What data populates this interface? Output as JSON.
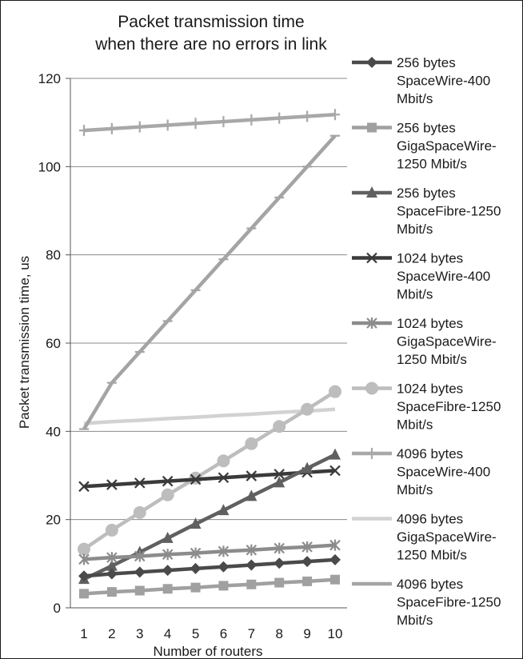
{
  "chart_data": {
    "type": "line",
    "title_lines": [
      "Packet transmission time",
      "when there are no errors in link"
    ],
    "xlabel": "Number of routers",
    "ylabel": "Packet  transmission time, us",
    "x": [
      1,
      2,
      3,
      4,
      5,
      6,
      7,
      8,
      9,
      10
    ],
    "ylim": [
      0,
      120
    ],
    "yticks": [
      0,
      20,
      40,
      60,
      80,
      100,
      120
    ],
    "grid": "horizontal",
    "legend_position": "right",
    "series": [
      {
        "name": "256 bytes SpaceWire-400 Mbit/s",
        "legend_lines": [
          "256 bytes",
          "SpaceWire-400",
          "Mbit/s"
        ],
        "color": "#4a4a4a",
        "marker": "diamond",
        "values": [
          7.2,
          7.7,
          8.1,
          8.5,
          8.9,
          9.3,
          9.7,
          10.1,
          10.5,
          10.9
        ]
      },
      {
        "name": "256 bytes GigaSpaceWire-1250 Mbit/s",
        "legend_lines": [
          "256 bytes",
          "GigaSpaceWire-",
          "1250 Mbit/s"
        ],
        "color": "#a0a0a0",
        "marker": "square",
        "values": [
          3.2,
          3.6,
          3.9,
          4.3,
          4.6,
          5.0,
          5.3,
          5.7,
          6.0,
          6.4
        ]
      },
      {
        "name": "256 bytes SpaceFibre-1250 Mbit/s",
        "legend_lines": [
          "256 bytes",
          "SpaceFibre-1250",
          "Mbit/s"
        ],
        "color": "#606060",
        "marker": "triangle",
        "values": [
          6.5,
          9.5,
          12.6,
          15.8,
          19.0,
          22.1,
          25.3,
          28.4,
          31.6,
          34.7
        ]
      },
      {
        "name": "1024 bytes SpaceWire-400 Mbit/s",
        "legend_lines": [
          "1024 bytes",
          "SpaceWire-400",
          "Mbit/s"
        ],
        "color": "#3a3a3a",
        "marker": "x",
        "values": [
          27.5,
          27.9,
          28.3,
          28.7,
          29.1,
          29.5,
          29.9,
          30.3,
          30.7,
          31.1
        ]
      },
      {
        "name": "1024 bytes GigaSpaceWire-1250 Mbit/s",
        "legend_lines": [
          "1024 bytes",
          "GigaSpaceWire-",
          "1250 Mbit/s"
        ],
        "color": "#8c8c8c",
        "marker": "asterisk",
        "values": [
          11.0,
          11.4,
          11.7,
          12.1,
          12.4,
          12.8,
          13.1,
          13.5,
          13.8,
          14.2
        ]
      },
      {
        "name": "1024 bytes SpaceFibre-1250 Mbit/s",
        "legend_lines": [
          "1024 bytes",
          "SpaceFibre-1250",
          "Mbit/s"
        ],
        "color": "#bdbdbd",
        "marker": "circle",
        "values": [
          13.3,
          17.6,
          21.6,
          25.6,
          29.4,
          33.3,
          37.2,
          41.1,
          45.0,
          49.0
        ]
      },
      {
        "name": "4096 bytes SpaceWire-400 Mbit/s",
        "legend_lines": [
          "4096 bytes",
          "SpaceWire-400",
          "Mbit/s"
        ],
        "color": "#a8a8a8",
        "marker": "plus",
        "values": [
          108.2,
          108.6,
          109.0,
          109.4,
          109.8,
          110.2,
          110.6,
          111.0,
          111.4,
          111.8
        ]
      },
      {
        "name": "4096 bytes GigaSpaceWire-1250 Mbit/s",
        "legend_lines": [
          "4096 bytes",
          "GigaSpaceWire-",
          "1250 Mbit/s"
        ],
        "color": "#d2d2d2",
        "marker": "none",
        "values": [
          41.8,
          42.2,
          42.5,
          42.9,
          43.2,
          43.6,
          43.9,
          44.3,
          44.6,
          45.0
        ]
      },
      {
        "name": "4096 bytes SpaceFibre-1250 Mbit/s",
        "legend_lines": [
          "4096 bytes",
          "SpaceFibre-1250",
          "Mbit/s"
        ],
        "color": "#a4a4a4",
        "marker": "dash",
        "values": [
          40.5,
          51.0,
          58.0,
          65.0,
          72.0,
          79.0,
          86.0,
          93.0,
          100.0,
          107.0
        ]
      }
    ]
  }
}
